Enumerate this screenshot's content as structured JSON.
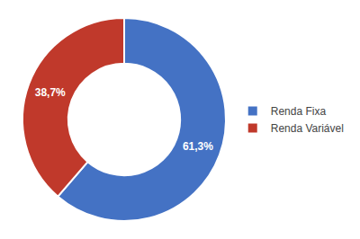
{
  "chart_data": {
    "type": "pie",
    "categories": [
      "Renda Fixa",
      "Renda Variável"
    ],
    "values": [
      61.3,
      38.7
    ],
    "value_labels": [
      "61,3%",
      "38,7%"
    ],
    "colors": [
      "#4472C4",
      "#C0392B"
    ],
    "data_labels": true,
    "legend": "right"
  }
}
